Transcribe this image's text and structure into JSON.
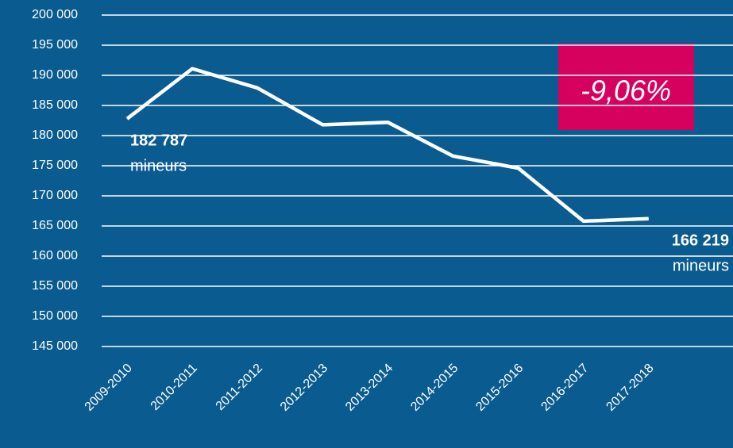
{
  "chart_data": {
    "type": "line",
    "categories": [
      "2009-2010",
      "2010-2011",
      "2011-2012",
      "2012-2013",
      "2013-2014",
      "2014-2015",
      "2015-2016",
      "2016-2017",
      "2017-2018"
    ],
    "series": [
      {
        "name": null,
        "color": "#ffffff",
        "values": [
          182787,
          191100,
          187900,
          181800,
          182200,
          176600,
          174600,
          165800,
          166219
        ]
      }
    ],
    "value_labels": [
      "182 787",
      null,
      null,
      null,
      null,
      null,
      null,
      null,
      "166 219"
    ],
    "unit_label": "mineurs",
    "annotation": "-9,06%",
    "annotation_color": "#d6005f",
    "ylim": [
      145000,
      200000
    ],
    "yticks": [
      {
        "value": 145000,
        "label": "145 000"
      },
      {
        "value": 150000,
        "label": "150 000"
      },
      {
        "value": 155000,
        "label": "155 000"
      },
      {
        "value": 160000,
        "label": "160 000"
      },
      {
        "value": 165000,
        "label": "165 000"
      },
      {
        "value": 170000,
        "label": "170 000"
      },
      {
        "value": 175000,
        "label": "175 000"
      },
      {
        "value": 180000,
        "label": "180 000"
      },
      {
        "value": 185000,
        "label": "185 000"
      },
      {
        "value": 190000,
        "label": "190 000"
      },
      {
        "value": 195000,
        "label": "195 000"
      },
      {
        "value": 200000,
        "label": "200 000"
      }
    ],
    "grid": true
  }
}
